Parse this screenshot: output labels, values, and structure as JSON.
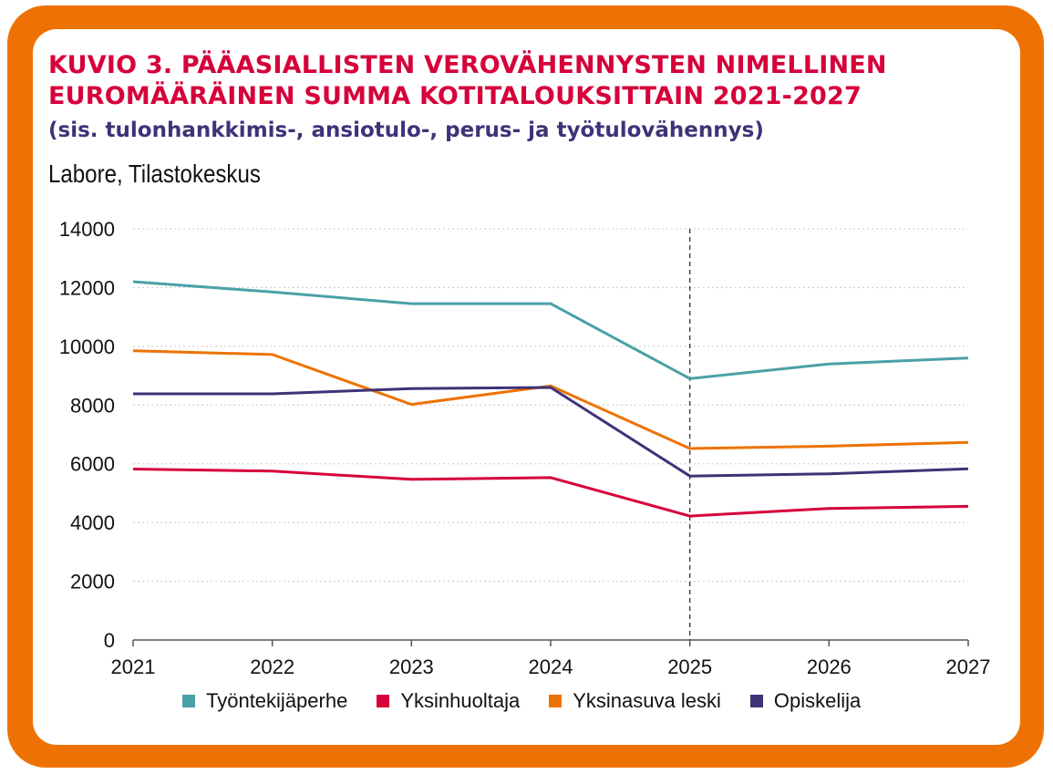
{
  "header": {
    "title": "KUVIO 3. PÄÄASIALLISTEN VEROVÄHENNYSTEN NIMELLINEN EUROMÄÄRÄINEN SUMMA KOTITALOUKSITTAIN 2021-2027",
    "subtitle": "(sis. tulonhankkimis-, ansiotulo-, perus- ja työtulovähennys)",
    "source": "Labore, Tilastokeskus"
  },
  "colors": {
    "frame": "#ee7203",
    "title": "#d6003a",
    "subtitle": "#3f3278"
  },
  "chart_data": {
    "type": "line",
    "title": "KUVIO 3. PÄÄASIALLISTEN VEROVÄHENNYSTEN NIMELLINEN EUROMÄÄRÄINEN SUMMA KOTITALOUKSITTAIN 2021-2027",
    "subtitle": "(sis. tulonhankkimis-, ansiotulo-, perus- ja työtulovähennys)",
    "xlabel": "",
    "ylabel": "",
    "categories": [
      "2021",
      "2022",
      "2023",
      "2024",
      "2025",
      "2026",
      "2027"
    ],
    "ylim": [
      0,
      14000
    ],
    "yticks": [
      "0",
      "2000",
      "4000",
      "6000",
      "8000",
      "10000",
      "12000",
      "14000"
    ],
    "grid": "horizontal dotted",
    "reference_line": "2025",
    "legend_position": "bottom",
    "series": [
      {
        "name": "Työntekijäperhe",
        "color": "#4aa0a8",
        "values": [
          12200,
          11850,
          11450,
          11450,
          8900,
          9400,
          9600
        ]
      },
      {
        "name": "Yksinhuoltaja",
        "color": "#d6003a",
        "values": [
          5820,
          5750,
          5470,
          5530,
          4220,
          4480,
          4550
        ]
      },
      {
        "name": "Yksinasuva leski",
        "color": "#ee7203",
        "values": [
          9850,
          9720,
          8020,
          8650,
          6520,
          6600,
          6730
        ]
      },
      {
        "name": "Opiskelija",
        "color": "#3f3278",
        "values": [
          8380,
          8380,
          8560,
          8600,
          5580,
          5660,
          5830
        ]
      }
    ]
  }
}
